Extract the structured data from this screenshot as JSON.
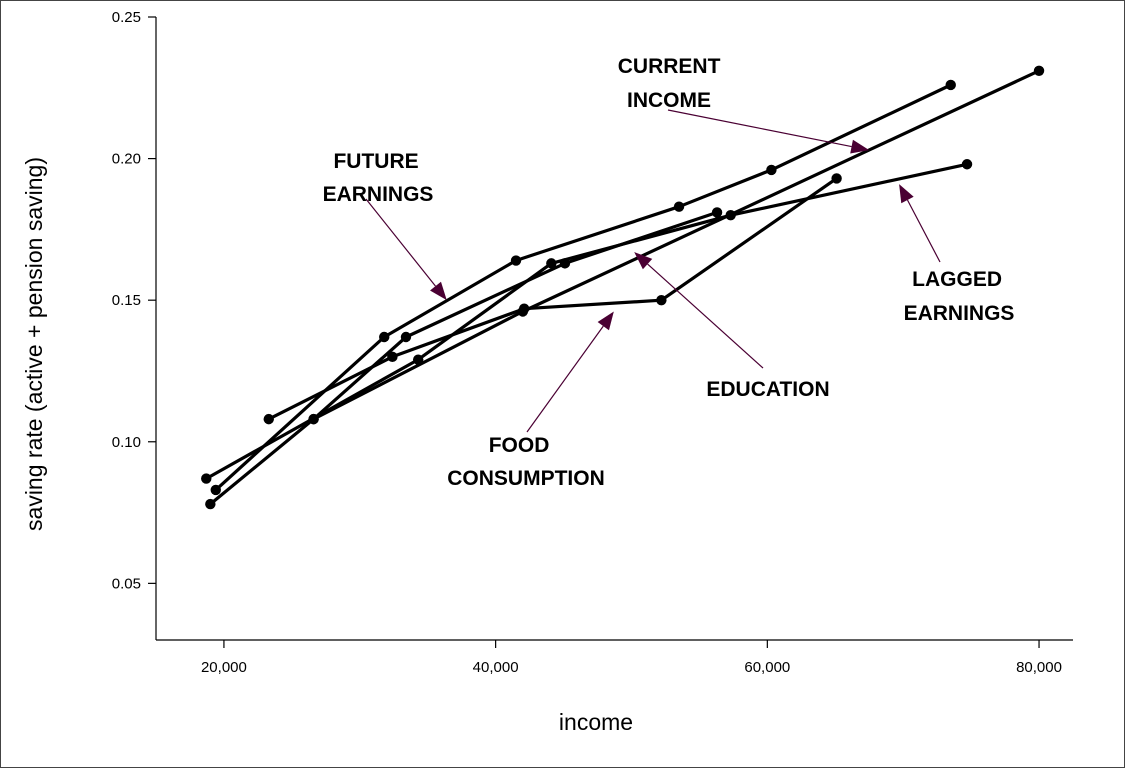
{
  "chart_data": {
    "type": "line",
    "title": "",
    "xlabel": "income",
    "ylabel": "saving rate (active + pension saving)",
    "xlim": [
      15000,
      82500
    ],
    "ylim": [
      0.03,
      0.25
    ],
    "x_ticks": [
      20000,
      40000,
      60000,
      80000
    ],
    "x_tick_labels": [
      "20,000",
      "40,000",
      "60,000",
      "80,000"
    ],
    "y_ticks": [
      0.05,
      0.1,
      0.15,
      0.2,
      0.25
    ],
    "y_tick_labels": [
      "0.05",
      "0.10",
      "0.15",
      "0.20",
      "0.25"
    ],
    "grid": false,
    "series": [
      {
        "key": "current",
        "points": [
          [
            19000,
            0.078
          ],
          [
            26600,
            0.108
          ],
          [
            42000,
            0.146
          ],
          [
            80000,
            0.231
          ]
        ]
      },
      {
        "key": "future",
        "points": [
          [
            19400,
            0.083
          ],
          [
            31800,
            0.137
          ],
          [
            41500,
            0.164
          ],
          [
            53500,
            0.183
          ],
          [
            60300,
            0.196
          ],
          [
            73500,
            0.226
          ]
        ]
      },
      {
        "key": "lagged",
        "points": [
          [
            18700,
            0.087
          ],
          [
            34300,
            0.129
          ],
          [
            44100,
            0.163
          ],
          [
            57300,
            0.18
          ],
          [
            74700,
            0.198
          ]
        ]
      },
      {
        "key": "education",
        "points": [
          [
            26600,
            0.108
          ],
          [
            33400,
            0.137
          ],
          [
            45100,
            0.163
          ],
          [
            56300,
            0.181
          ]
        ]
      },
      {
        "key": "food",
        "points": [
          [
            23300,
            0.108
          ],
          [
            32400,
            0.13
          ],
          [
            42100,
            0.147
          ],
          [
            52200,
            0.15
          ],
          [
            65100,
            0.193
          ]
        ]
      }
    ],
    "annotations": [
      {
        "key": "current",
        "lines": [
          "CURRENT",
          "INCOME"
        ],
        "points_to": [
          67500,
          0.203
        ]
      },
      {
        "key": "future",
        "lines": [
          "FUTURE",
          "EARNINGS"
        ],
        "points_to": [
          36400,
          0.15
        ]
      },
      {
        "key": "lagged",
        "lines": [
          "LAGGED",
          "EARNINGS"
        ],
        "points_to": [
          69700,
          0.191
        ]
      },
      {
        "key": "education",
        "lines": [
          "EDUCATION"
        ],
        "points_to": [
          50200,
          0.167
        ]
      },
      {
        "key": "food",
        "lines": [
          "FOOD",
          "CONSUMPTION"
        ],
        "points_to": [
          48700,
          0.146
        ]
      }
    ]
  }
}
